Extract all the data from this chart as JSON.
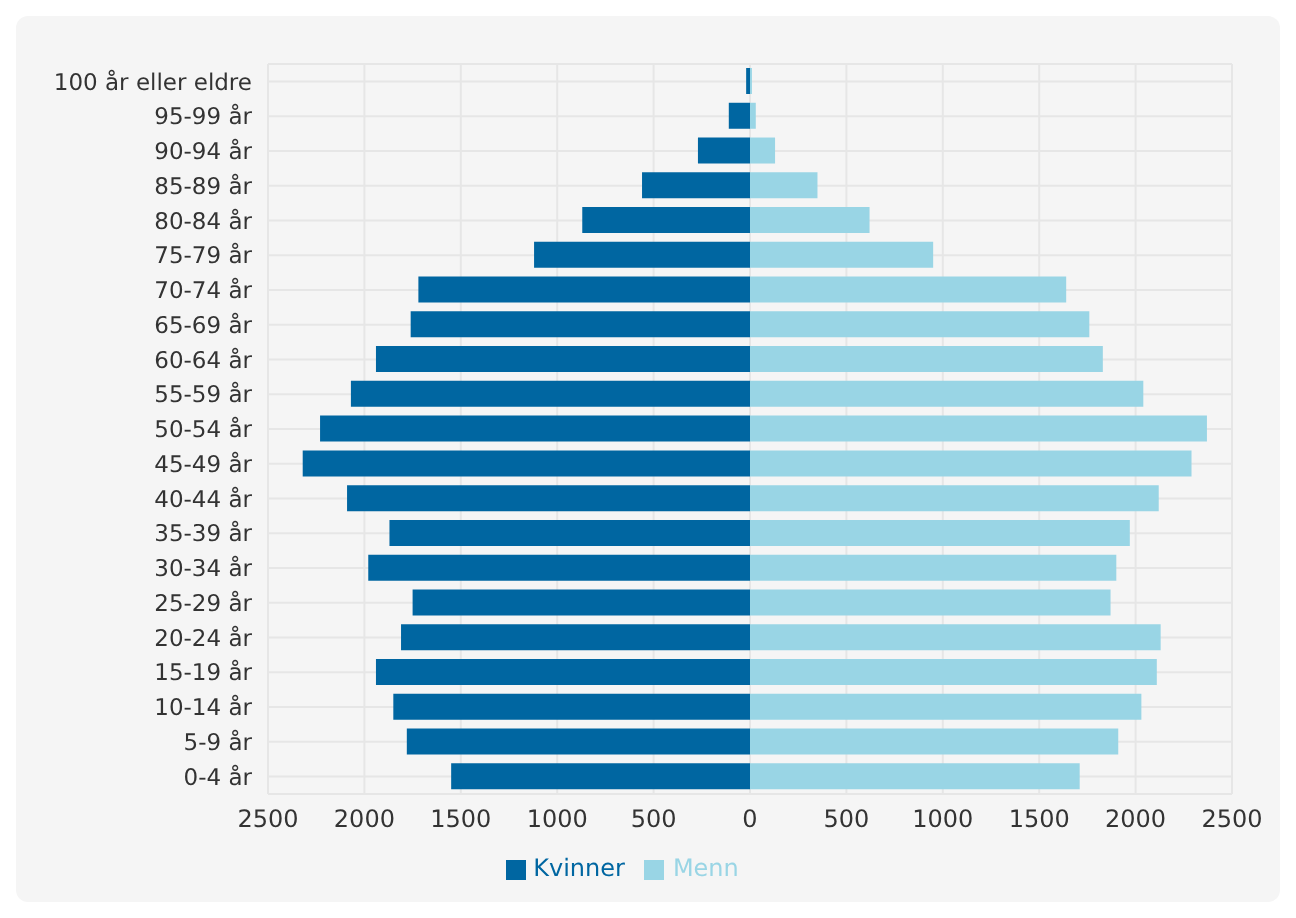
{
  "chart_data": {
    "type": "bar",
    "orientation": "horizontal",
    "stacked": true,
    "grid": true,
    "legend": "bottom",
    "categories": [
      "100 år eller eldre",
      "95-99 år",
      "90-94 år",
      "85-89 år",
      "80-84 år",
      "75-79 år",
      "70-74 år",
      "65-69 år",
      "60-64 år",
      "55-59 år",
      "50-54 år",
      "45-49 år",
      "40-44 år",
      "35-39 år",
      "30-34 år",
      "25-29 år",
      "20-24 år",
      "15-19 år",
      "10-14 år",
      "5-9 år",
      "0-4 år"
    ],
    "series": [
      {
        "name": "Kvinner",
        "color": "#0066a1",
        "values": [
          -20,
          -110,
          -270,
          -560,
          -870,
          -1120,
          -1720,
          -1760,
          -1940,
          -2070,
          -2230,
          -2320,
          -2090,
          -1870,
          -1980,
          -1750,
          -1810,
          -1940,
          -1850,
          -1780,
          -1550
        ]
      },
      {
        "name": "Menn",
        "color": "#99d5e5",
        "values": [
          10,
          30,
          130,
          350,
          620,
          950,
          1640,
          1760,
          1830,
          2040,
          2370,
          2290,
          2120,
          1970,
          1900,
          1870,
          2130,
          2110,
          2030,
          1910,
          1710
        ]
      }
    ],
    "xlim": [
      -2500,
      2500
    ],
    "xticks": [
      {
        "value": -2500,
        "label": "2500"
      },
      {
        "value": -2000,
        "label": "2000"
      },
      {
        "value": -1500,
        "label": "1500"
      },
      {
        "value": -1000,
        "label": "1000"
      },
      {
        "value": -500,
        "label": "500"
      },
      0,
      500,
      1000,
      1500,
      2000,
      2500
    ]
  }
}
